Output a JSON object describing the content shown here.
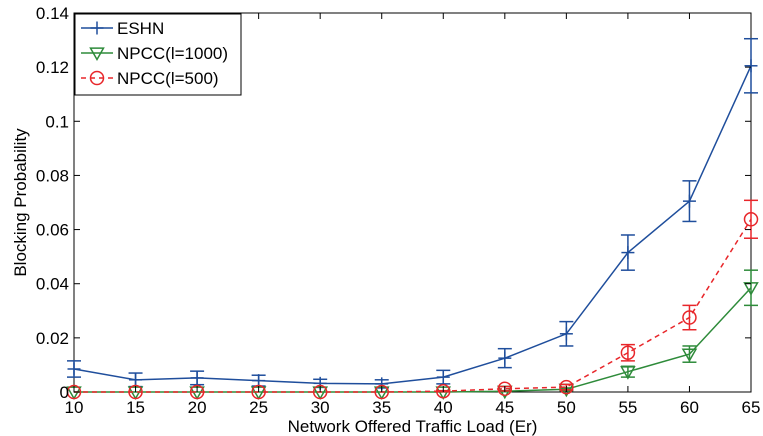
{
  "chart_data": {
    "type": "line",
    "xlabel": "Network Offered Traffic Load (Er)",
    "ylabel": "Blocking Probability",
    "xlim": [
      10,
      65
    ],
    "ylim": [
      0,
      0.14
    ],
    "x_ticks": [
      10,
      15,
      20,
      25,
      30,
      35,
      40,
      45,
      50,
      55,
      60,
      65
    ],
    "y_ticks": [
      0,
      0.02,
      0.04,
      0.06,
      0.08,
      0.1,
      0.12,
      0.14
    ],
    "y_tick_labels": [
      "0",
      "0.02",
      "0.04",
      "0.06",
      "0.08",
      "0.1",
      "0.12",
      "0.14"
    ],
    "x": [
      10,
      15,
      20,
      25,
      30,
      35,
      40,
      45,
      50,
      55,
      60,
      65
    ],
    "grid": false,
    "legend_position": "top-left",
    "series": [
      {
        "name": "ESHN",
        "color": "#1f4e9c",
        "marker": "plus",
        "line_style": "solid",
        "values": [
          0.0085,
          0.0045,
          0.0052,
          0.0042,
          0.0032,
          0.003,
          0.0055,
          0.0125,
          0.0215,
          0.0515,
          0.0705,
          0.1205
        ],
        "err": [
          0.003,
          0.0025,
          0.0025,
          0.002,
          0.0015,
          0.0015,
          0.0025,
          0.0035,
          0.0045,
          0.0065,
          0.0075,
          0.01
        ]
      },
      {
        "name": "NPCC(l=1000)",
        "color": "#2e8b3a",
        "marker": "triangle-down",
        "line_style": "solid",
        "values": [
          0,
          0,
          0,
          0,
          0,
          0,
          0,
          0.0003,
          0.001,
          0.0075,
          0.014,
          0.0385
        ],
        "err": [
          0,
          0,
          0,
          0,
          0,
          0,
          0,
          0.0002,
          0.0005,
          0.002,
          0.003,
          0.0065
        ]
      },
      {
        "name": "NPCC(l=500)",
        "color": "#e8262a",
        "marker": "circle",
        "line_style": "dashed",
        "values": [
          0,
          0,
          0,
          0,
          0,
          0,
          0.0003,
          0.0012,
          0.0018,
          0.0145,
          0.0275,
          0.0638
        ],
        "err": [
          0,
          0,
          0,
          0,
          0,
          0,
          0.0002,
          0.0008,
          0.001,
          0.003,
          0.0045,
          0.007
        ]
      }
    ]
  }
}
